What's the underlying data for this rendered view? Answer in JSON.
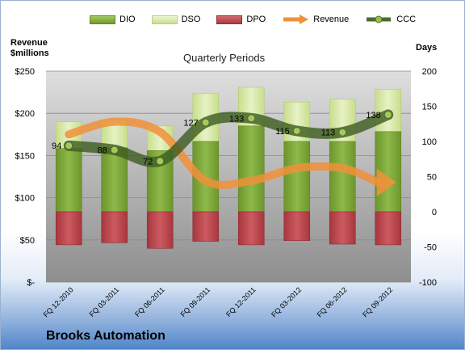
{
  "chart_data": {
    "type": "bar",
    "title": "Quarterly Periods",
    "company": "Brooks Automation",
    "left_axis_title": [
      "Revenue",
      "$millions"
    ],
    "right_axis_title": "Days",
    "left_ticks": [
      "$-",
      "$50",
      "$100",
      "$150",
      "$200",
      "$250"
    ],
    "left_tick_values": [
      0,
      50,
      100,
      150,
      200,
      250
    ],
    "right_ticks": [
      "-100",
      "-50",
      "0",
      "50",
      "100",
      "150",
      "200"
    ],
    "right_tick_values": [
      -100,
      -50,
      0,
      50,
      100,
      150,
      200
    ],
    "ylim_left": [
      0,
      250
    ],
    "ylim_right": [
      -100,
      200
    ],
    "categories": [
      "FQ 12-2010",
      "FQ 03-2011",
      "FQ 06-2011",
      "FQ 09-2011",
      "FQ 12-2011",
      "FQ 03-2012",
      "FQ 06-2012",
      "FQ 09-2012"
    ],
    "series": [
      {
        "name": "DIO",
        "axis": "right",
        "values": [
          90,
          91,
          87,
          100,
          122,
          100,
          100,
          114
        ]
      },
      {
        "name": "DSO",
        "axis": "right",
        "values": [
          38,
          39,
          35,
          68,
          55,
          56,
          60,
          60
        ]
      },
      {
        "name": "DPO",
        "axis": "right",
        "values": [
          -47,
          -44,
          -52,
          -42,
          -47,
          -41,
          -46,
          -47
        ]
      },
      {
        "name": "Revenue",
        "axis": "left",
        "values": [
          175,
          190,
          178,
          120,
          120,
          135,
          135,
          118
        ]
      },
      {
        "name": "CCC",
        "axis": "right",
        "values": [
          94,
          88,
          72,
          127,
          133,
          115,
          113,
          138
        ]
      }
    ],
    "ccc_labels": [
      "94",
      "88",
      "72",
      "127",
      "133",
      "115",
      "113",
      "138"
    ],
    "colors": {
      "DIO": "#7fa63a",
      "DSO": "#d6e8a4",
      "DPO": "#b8434a",
      "Revenue": "#f0913a",
      "CCC": "#4e6b2e"
    },
    "grid": true,
    "legend_position": "top"
  }
}
